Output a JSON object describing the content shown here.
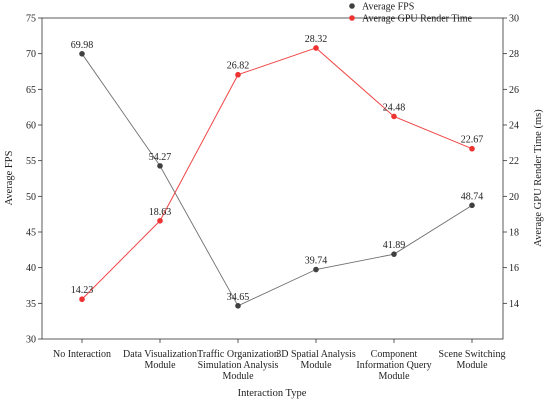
{
  "chart_data": {
    "type": "line",
    "xlabel": "Interaction Type",
    "ylabel_left": "Average FPS",
    "ylabel_right": "Average GPU Render Time (ms)",
    "categories": [
      [
        "No Interaction"
      ],
      [
        "Data Visualization",
        "Module"
      ],
      [
        "Traffic Organization",
        "Simulation Analysis",
        "Module"
      ],
      [
        "3D Spatial Analysis",
        "Module"
      ],
      [
        "Component",
        "Information Query",
        "Module"
      ],
      [
        "Scene Switching",
        "Module"
      ]
    ],
    "ylim_left": [
      30,
      75
    ],
    "yticks_left": [
      30,
      35,
      40,
      45,
      50,
      55,
      60,
      65,
      70,
      75
    ],
    "ylim_right": [
      12,
      30
    ],
    "yticks_right": [
      14,
      16,
      18,
      20,
      22,
      24,
      26,
      28,
      30
    ],
    "legend_position": "top-right",
    "grid": false,
    "series": [
      {
        "name": "Average FPS",
        "axis": "left",
        "color": "#404040",
        "values": [
          69.98,
          54.27,
          34.65,
          39.74,
          41.89,
          48.74
        ],
        "labels": [
          "69.98",
          "54.27",
          "34.65",
          "39.74",
          "41.89",
          "48.74"
        ]
      },
      {
        "name": "Average GPU Render Time",
        "axis": "right",
        "color": "#ee3333",
        "values": [
          14.23,
          18.63,
          26.82,
          28.32,
          24.48,
          22.67
        ],
        "labels": [
          "14.23",
          "18.63",
          "26.82",
          "28.32",
          "24.48",
          "22.67"
        ]
      }
    ]
  }
}
